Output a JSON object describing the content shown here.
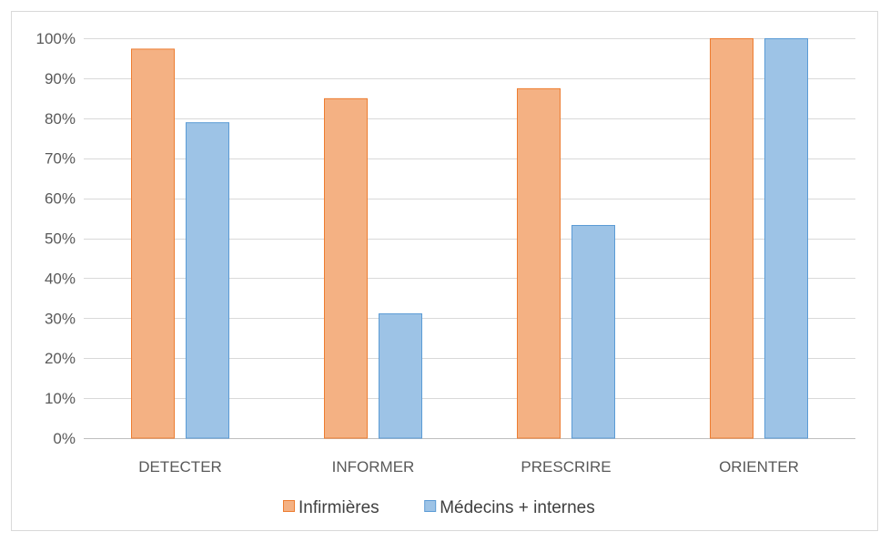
{
  "chart_data": {
    "type": "bar",
    "title": "",
    "xlabel": "",
    "ylabel": "",
    "categories": [
      "DETECTER",
      "INFORMER",
      "PRESCRIRE",
      "ORIENTER"
    ],
    "series": [
      {
        "name": "Infirmières",
        "values": [
          97.4,
          85.0,
          87.5,
          100.0
        ],
        "color": "#f4b183",
        "stroke": "#ed7d31"
      },
      {
        "name": "Médecins + internes",
        "values": [
          79.0,
          31.2,
          53.3,
          100.0
        ],
        "color": "#9dc3e6",
        "stroke": "#5b9bd5"
      }
    ],
    "ylim": [
      0,
      100
    ],
    "yticks": [
      0,
      10,
      20,
      30,
      40,
      50,
      60,
      70,
      80,
      90,
      100
    ],
    "ytick_labels": [
      "0%",
      "10%",
      "20%",
      "30%",
      "40%",
      "50%",
      "60%",
      "70%",
      "80%",
      "90%",
      "100%"
    ],
    "grid": true,
    "legend_position": "bottom"
  }
}
